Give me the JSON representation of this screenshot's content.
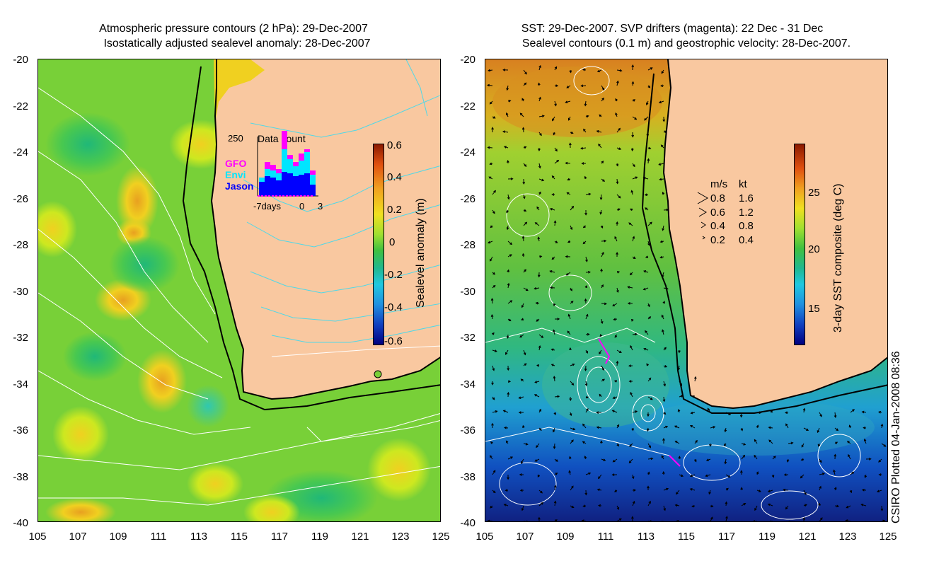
{
  "left_panel": {
    "title_line1": "Atmospheric pressure contours (2 hPa): 29-Dec-2007",
    "title_line2": "Isostatically adjusted sealevel anomaly: 28-Dec-2007",
    "colorbar_label": "Sealevel anomaly (m)",
    "colorbar_ticks": [
      "0.6",
      "0.4",
      "0.2",
      "0",
      "-0.2",
      "-0.4",
      "-0.6"
    ],
    "inset": {
      "title": "Data count",
      "ymax_label": "250",
      "legend": [
        {
          "name": "GFO",
          "color": "#ff00ff"
        },
        {
          "name": "Envi",
          "color": "#00e5ff"
        },
        {
          "name": "Jason",
          "color": "#0000ff"
        }
      ],
      "x_labels": [
        "-7days",
        "0",
        "3"
      ]
    }
  },
  "right_panel": {
    "title_line1": "SST: 29-Dec-2007. SVP drifters (magenta): 22 Dec - 31 Dec",
    "title_line2": "Sealevel contours (0.1 m) and geostrophic velocity: 28-Dec-2007.",
    "colorbar_label": "3-day SST composite (deg C)",
    "colorbar_ticks": [
      "25",
      "20",
      "15"
    ],
    "velocity_legend": {
      "header_ms": "m/s",
      "header_kt": "kt",
      "rows": [
        {
          "ms": "0.8",
          "kt": "1.6"
        },
        {
          "ms": "0.6",
          "kt": "1.2"
        },
        {
          "ms": "0.4",
          "kt": "0.8"
        },
        {
          "ms": "0.2",
          "kt": "0.4"
        }
      ]
    }
  },
  "axes": {
    "y_labels": [
      "-20",
      "-22",
      "-24",
      "-26",
      "-28",
      "-30",
      "-32",
      "-34",
      "-36",
      "-38",
      "-40"
    ],
    "x_labels": [
      "105",
      "107",
      "109",
      "111",
      "113",
      "115",
      "117",
      "119",
      "121",
      "123",
      "125"
    ]
  },
  "credit": "CSIRO Plotted 04-Jan-2008 08:36",
  "colors": {
    "land": "#f9c8a0",
    "coast": "#000000",
    "pressure_contour": "#ffffff",
    "sla_contour": "#4fd8e8"
  }
}
